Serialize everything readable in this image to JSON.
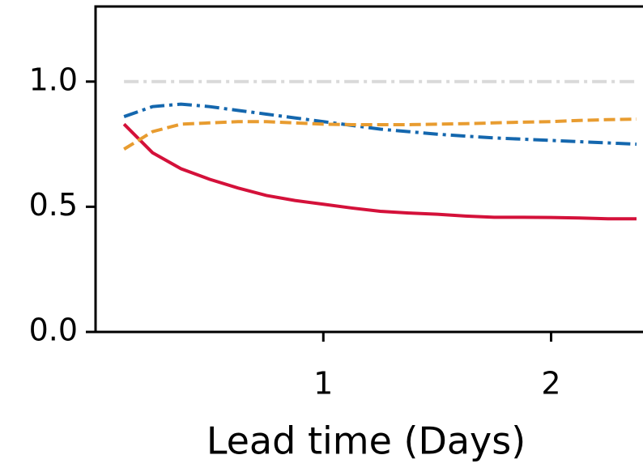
{
  "chart_data": {
    "type": "line",
    "x_label": "Lead time (Days)",
    "x": [
      0.125,
      0.25,
      0.375,
      0.5,
      0.625,
      0.75,
      0.875,
      1.0,
      1.125,
      1.25,
      1.375,
      1.5,
      1.625,
      1.75,
      1.875,
      2.0,
      2.125,
      2.25,
      2.375
    ],
    "series": [
      {
        "color": "#d9d9d9",
        "dash": "dashdot",
        "values": [
          1,
          1,
          1,
          1,
          1,
          1,
          1,
          1,
          1,
          1,
          1,
          1,
          1,
          1,
          1,
          1,
          1,
          1,
          1
        ]
      },
      {
        "color": "#d4113a",
        "dash": "solid",
        "values": [
          0.83,
          0.716,
          0.652,
          0.61,
          0.575,
          0.545,
          0.525,
          0.51,
          0.495,
          0.482,
          0.475,
          0.47,
          0.463,
          0.458,
          0.458,
          0.457,
          0.455,
          0.452,
          0.452
        ]
      },
      {
        "color": "#1467ae",
        "dash": "dashdot",
        "values": [
          0.86,
          0.9,
          0.91,
          0.9,
          0.885,
          0.87,
          0.855,
          0.84,
          0.825,
          0.81,
          0.8,
          0.79,
          0.782,
          0.775,
          0.77,
          0.765,
          0.76,
          0.755,
          0.75
        ]
      },
      {
        "color": "#e89c30",
        "dash": "dashed",
        "values": [
          0.73,
          0.8,
          0.83,
          0.835,
          0.84,
          0.84,
          0.835,
          0.83,
          0.828,
          0.828,
          0.828,
          0.83,
          0.832,
          0.835,
          0.838,
          0.84,
          0.845,
          0.848,
          0.85
        ]
      }
    ],
    "xlim": [
      0,
      2.375
    ],
    "ylim": [
      0,
      1.3
    ],
    "xticks": [
      1,
      2
    ],
    "yticks": [
      {
        "value": 0,
        "label": "0.0"
      },
      {
        "value": 0.5,
        "label": "0.5"
      },
      {
        "value": 1,
        "label": "1.0"
      }
    ]
  }
}
